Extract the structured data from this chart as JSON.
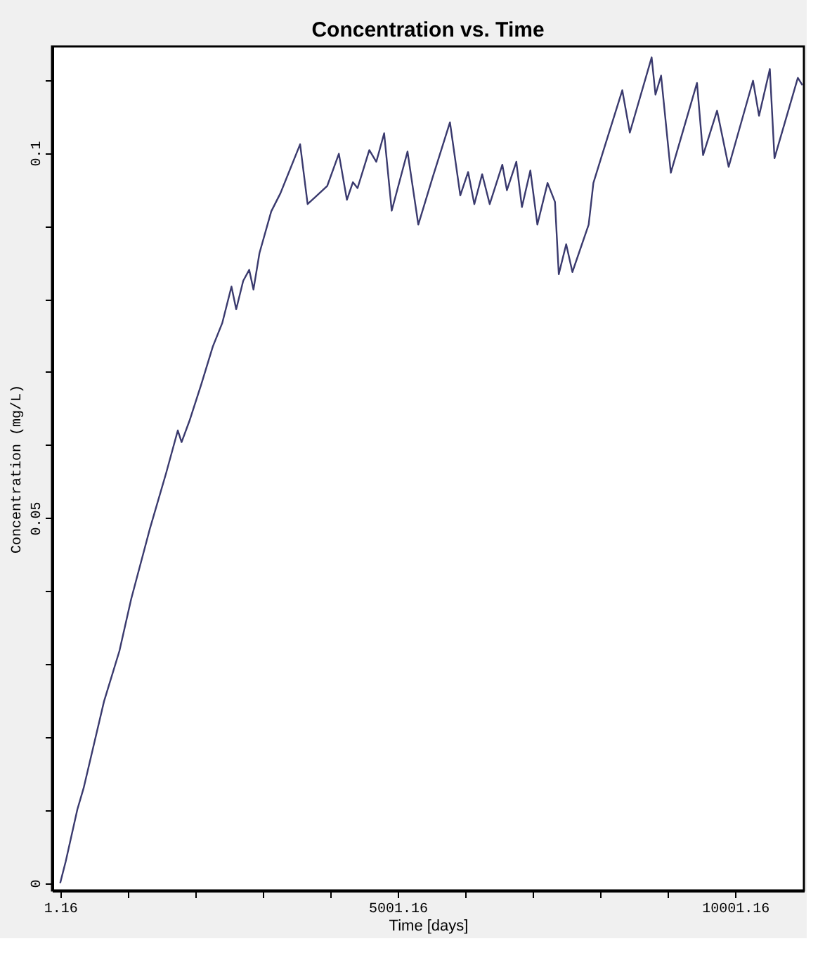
{
  "chart_data": {
    "type": "line",
    "title": "Concentration vs. Time",
    "xlabel": "Time [days]",
    "ylabel": "Concentration (mg/L)",
    "x": [
      1.16,
      84,
      256,
      348,
      651,
      879,
      1053,
      1329,
      1572,
      1744,
      1800,
      1916,
      2091,
      2263,
      2402,
      2539,
      2609,
      2713,
      2802,
      2865,
      2954,
      3128,
      3265,
      3556,
      3667,
      3784,
      3958,
      4130,
      4249,
      4338,
      4407,
      4581,
      4685,
      4801,
      4913,
      5147,
      5307,
      5514,
      5776,
      5929,
      6045,
      6137,
      6253,
      6365,
      6552,
      6620,
      6759,
      6842,
      6967,
      7071,
      7222,
      7332,
      7388,
      7498,
      7590,
      7831,
      7901,
      8038,
      8329,
      8441,
      8764,
      8821,
      8904,
      9048,
      9436,
      9526,
      9733,
      9905,
      10266,
      10355,
      10515,
      10584,
      10930,
      10998
    ],
    "series": [
      {
        "color": "#3a3a6e",
        "values": [
          0,
          0.003,
          0.0101,
          0.013,
          0.0249,
          0.0318,
          0.0389,
          0.0485,
          0.0562,
          0.062,
          0.0604,
          0.0633,
          0.0683,
          0.0735,
          0.0767,
          0.0817,
          0.0786,
          0.0825,
          0.084,
          0.0813,
          0.0863,
          0.092,
          0.0945,
          0.1012,
          0.093,
          0.094,
          0.0955,
          0.0999,
          0.0936,
          0.096,
          0.0952,
          0.1004,
          0.0988,
          0.1027,
          0.0921,
          0.1002,
          0.0902,
          0.0965,
          0.1042,
          0.0942,
          0.0974,
          0.093,
          0.0971,
          0.093,
          0.0984,
          0.0949,
          0.0988,
          0.0926,
          0.0976,
          0.0902,
          0.0959,
          0.0933,
          0.0834,
          0.0875,
          0.0837,
          0.0902,
          0.0959,
          0.1,
          0.1086,
          0.1028,
          0.1131,
          0.108,
          0.1106,
          0.0973,
          0.1096,
          0.0997,
          0.1058,
          0.0981,
          0.1099,
          0.1051,
          0.1115,
          0.0993,
          0.1103,
          0.1093
        ]
      }
    ],
    "xlim": [
      -120,
      11020
    ],
    "ylim": [
      -0.001,
      0.1146
    ],
    "xticks": [
      1.16,
      {
        "value": 1001.16,
        "label": null
      },
      {
        "value": 2001.16,
        "label": null
      },
      {
        "value": 3001.16,
        "label": null
      },
      {
        "value": 4001.16,
        "label": null
      },
      5001.16,
      {
        "value": 6001.16,
        "label": null
      },
      {
        "value": 7001.16,
        "label": null
      },
      {
        "value": 8001.16,
        "label": null
      },
      {
        "value": 9001.16,
        "label": null
      },
      10001.16
    ],
    "yticks": [
      0,
      {
        "value": 0.01,
        "label": null
      },
      {
        "value": 0.02,
        "label": null
      },
      {
        "value": 0.03,
        "label": null
      },
      {
        "value": 0.04,
        "label": null
      },
      0.05,
      {
        "value": 0.06,
        "label": null
      },
      {
        "value": 0.07,
        "label": null
      },
      {
        "value": 0.08,
        "label": null
      },
      {
        "value": 0.09,
        "label": null
      },
      0.1,
      {
        "value": 0.11,
        "label": null
      }
    ],
    "grid": false,
    "marker": "none",
    "line_style": "solid"
  }
}
